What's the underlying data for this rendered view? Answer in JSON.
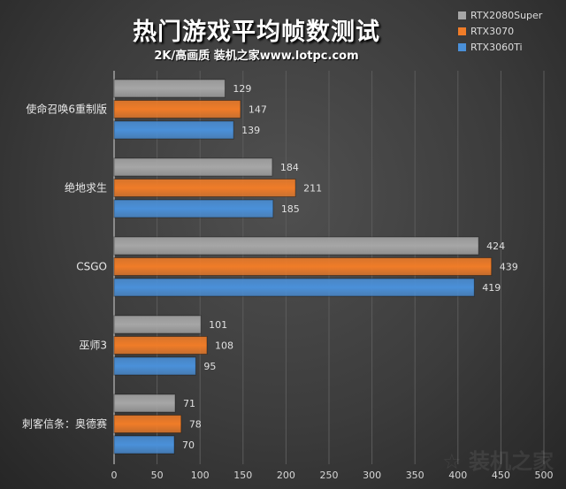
{
  "chart_data": {
    "type": "bar",
    "orientation": "horizontal",
    "title": "热门游戏平均帧数测试",
    "subtitle": "2K/高画质 装机之家www.lotpc.com",
    "categories": [
      "使命召唤6重制版",
      "绝地求生",
      "CSGO",
      "巫师3",
      "刺客信条：奥德赛"
    ],
    "series": [
      {
        "name": "RTX2080Super",
        "color": "#a6a6a6",
        "values": [
          129,
          184,
          424,
          101,
          71
        ]
      },
      {
        "name": "RTX3070",
        "color": "#f07c28",
        "values": [
          147,
          211,
          439,
          108,
          78
        ]
      },
      {
        "name": "RTX3060Ti",
        "color": "#4a90d9",
        "values": [
          139,
          185,
          419,
          95,
          70
        ]
      }
    ],
    "xlim": [
      0,
      500
    ],
    "xticks": [
      0,
      50,
      100,
      150,
      200,
      250,
      300,
      350,
      400,
      450,
      500
    ],
    "grid": true,
    "legend_position": "top-right",
    "watermark": "装机之家 www.lotpc.com"
  }
}
